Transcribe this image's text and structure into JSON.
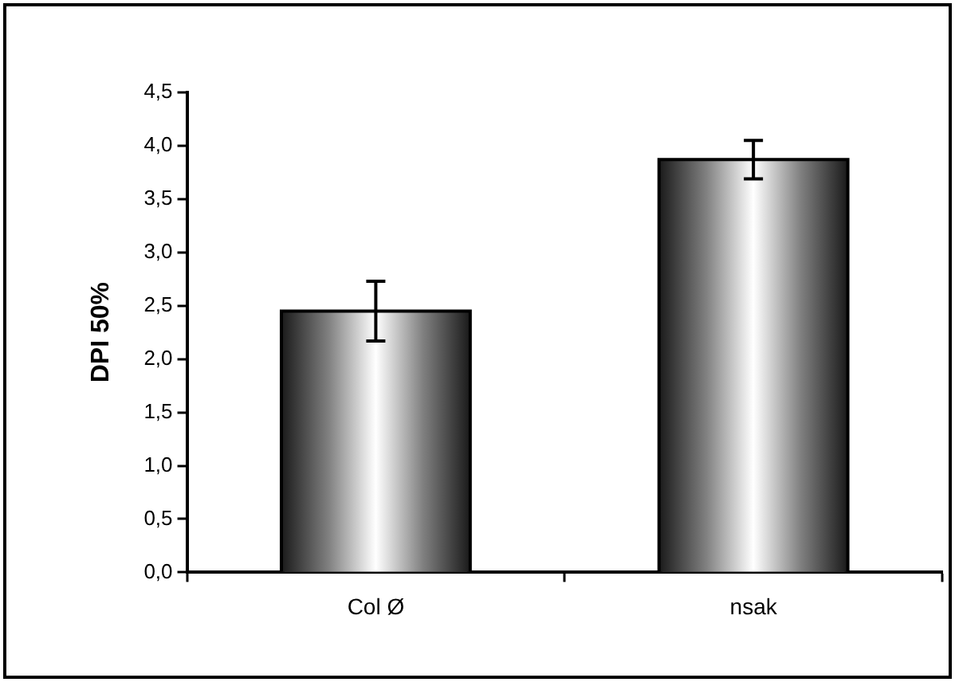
{
  "chart_data": {
    "type": "bar",
    "ylabel": "DPI 50%",
    "categories": [
      "Col Ø",
      "nsak"
    ],
    "values": [
      2.45,
      3.87
    ],
    "errors": [
      0.28,
      0.18
    ],
    "color": "#808080",
    "ylim": [
      0,
      4.5
    ],
    "yticks": [
      {
        "value": 0,
        "label": "0,0"
      },
      {
        "value": 0.5,
        "label": "0,5"
      },
      {
        "value": 1,
        "label": "1,0"
      },
      {
        "value": 1.5,
        "label": "1,5"
      },
      {
        "value": 2,
        "label": "2,0"
      },
      {
        "value": 2.5,
        "label": "2,5"
      },
      {
        "value": 3,
        "label": "3,0"
      },
      {
        "value": 3.5,
        "label": "3,5"
      },
      {
        "value": 4,
        "label": "4,0"
      },
      {
        "value": 4.5,
        "label": "4,5"
      }
    ],
    "grid": false,
    "legend": false
  }
}
